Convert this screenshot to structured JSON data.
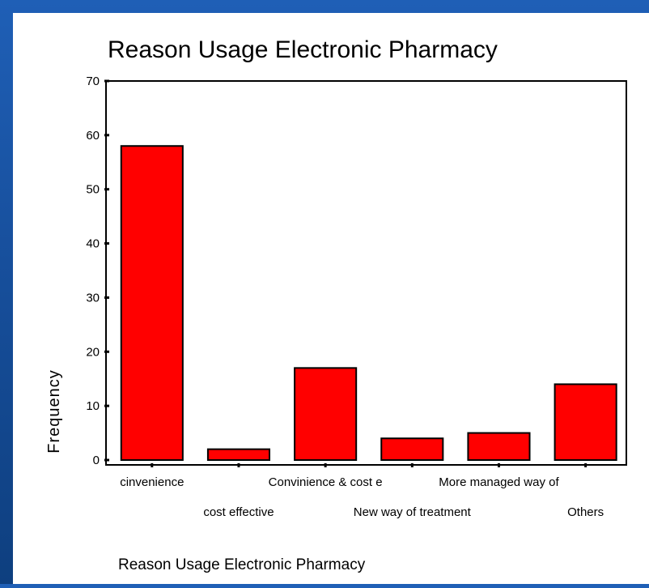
{
  "chart_data": {
    "type": "bar",
    "title": "Reason Usage Electronic Pharmacy",
    "xlabel": "Reason Usage Electronic Pharmacy",
    "ylabel": "Frequency",
    "categories": [
      "cinvenience",
      "cost effective",
      "Convinience & cost e",
      "New way of treatment",
      "More managed way of",
      "Others"
    ],
    "values": [
      58,
      2,
      17,
      4,
      5,
      14
    ],
    "ylim": [
      0,
      70
    ],
    "yticks": [
      "0",
      "10",
      "20",
      "30",
      "40",
      "50",
      "60",
      "70"
    ],
    "bar_color": "#ff0000",
    "grid": false
  }
}
